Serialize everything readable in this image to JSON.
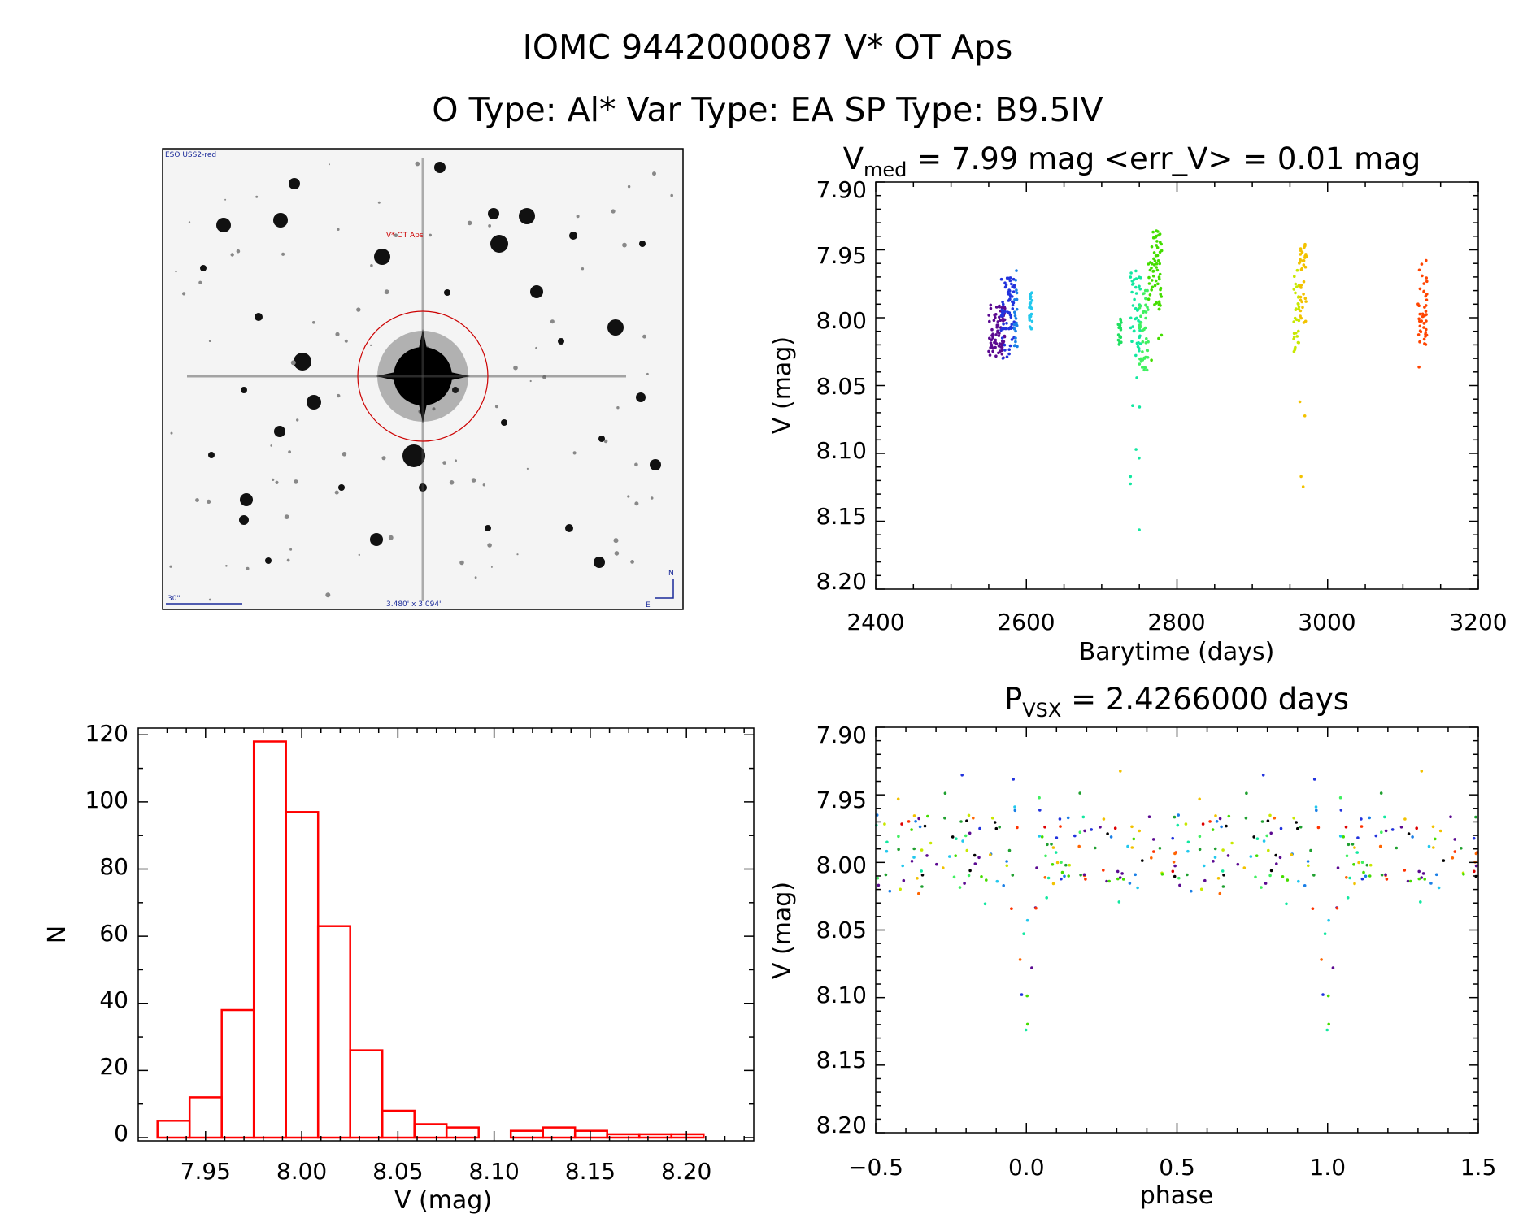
{
  "header": {
    "title_line1": "IOMC 9442000087   V* OT Aps",
    "title_line2": "O Type: Al*  Var Type: EA  SP Type: B9.5IV"
  },
  "finder": {
    "survey_label": "ESO USS2-red",
    "target_label": "V* OT Aps",
    "scale_label": "30\"",
    "field_label": "3.480' x 3.094'",
    "north": "N",
    "east": "E"
  },
  "colors": {
    "histogram": "#ff0000",
    "axes": "#000000",
    "circle": "#cc0000"
  },
  "chart_data": [
    {
      "id": "light_curve",
      "type": "scatter",
      "title_main": "V",
      "title_sub": "med",
      "title_rest": " = 7.99 mag <err_V> = 0.01 mag",
      "xlabel": "Barytime (days)",
      "ylabel": "V (mag)",
      "xlim": [
        2400,
        3200
      ],
      "ylim": [
        8.2,
        7.9
      ],
      "xticks": [
        2400,
        2600,
        2800,
        3000,
        3200
      ],
      "yticks": [
        7.9,
        7.95,
        8.0,
        8.05,
        8.1,
        8.15,
        8.2
      ],
      "clusters": [
        {
          "x": [
            2550,
            2572
          ],
          "y": [
            7.98,
            8.03
          ],
          "color": "#5b0a91"
        },
        {
          "x": [
            2566,
            2584
          ],
          "y": [
            7.96,
            8.03
          ],
          "color": "#2233dd"
        },
        {
          "x": [
            2584,
            2588
          ],
          "y": [
            7.955,
            8.035
          ],
          "color": "#1a7fe6"
        },
        {
          "x": [
            2604,
            2608
          ],
          "y": [
            7.97,
            8.01
          ],
          "color": "#22c8ee"
        },
        {
          "x": [
            2738,
            2752
          ],
          "y": [
            7.96,
            8.195
          ],
          "color": "#12e8a0"
        },
        {
          "x": [
            2750,
            2762
          ],
          "y": [
            7.97,
            8.05
          ],
          "color": "#40f060"
        },
        {
          "x": [
            2762,
            2780
          ],
          "y": [
            7.925,
            8.035
          ],
          "color": "#44dd00"
        },
        {
          "x": [
            2955,
            2962
          ],
          "y": [
            7.955,
            8.025
          ],
          "color": "#c8e800"
        },
        {
          "x": [
            2962,
            2972
          ],
          "y": [
            7.935,
            8.16
          ],
          "color": "#f2c200"
        },
        {
          "x": [
            2722,
            2726
          ],
          "y": [
            7.99,
            8.02
          ],
          "color": "#20e060"
        },
        {
          "x": [
            3120,
            3132
          ],
          "y": [
            7.95,
            8.05
          ],
          "color": "#ff4400"
        }
      ]
    },
    {
      "id": "histogram",
      "type": "bar",
      "xlabel": "V (mag)",
      "ylabel": "N",
      "xlim": [
        7.915,
        8.235
      ],
      "ylim": [
        0,
        122
      ],
      "xticks": [
        7.95,
        8.0,
        8.05,
        8.1,
        8.15,
        8.2
      ],
      "xtick_labels": [
        "7.95",
        "8.00",
        "8.05",
        "8.10",
        "8.15",
        "8.20"
      ],
      "yticks": [
        0,
        20,
        40,
        60,
        80,
        100,
        120
      ],
      "bin_width": 0.0167,
      "bin_start": 7.925,
      "values": [
        5,
        12,
        38,
        118,
        97,
        63,
        26,
        8,
        4,
        3,
        0,
        2,
        3,
        2,
        1,
        1,
        1
      ]
    },
    {
      "id": "phased",
      "type": "scatter",
      "title_main": "P",
      "title_sub": "VSX",
      "title_rest": " = 2.4266000 days",
      "xlabel": "phase",
      "ylabel": "V (mag)",
      "xlim": [
        -0.5,
        1.5
      ],
      "ylim": [
        8.2,
        7.9
      ],
      "xticks": [
        -0.5,
        0.0,
        0.5,
        1.0,
        1.5
      ],
      "xtick_labels": [
        "−0.5",
        "0.0",
        "0.5",
        "1.0",
        "1.5"
      ],
      "yticks": [
        7.9,
        7.95,
        8.0,
        8.05,
        8.1,
        8.15,
        8.2
      ],
      "eclipse_phase": 0.0
    }
  ],
  "tick_labels_y_mag": [
    "7.90",
    "7.95",
    "8.00",
    "8.05",
    "8.10",
    "8.15",
    "8.20"
  ],
  "tick_labels_x_bary": [
    "2400",
    "2600",
    "2800",
    "3000",
    "3200"
  ],
  "tick_labels_y_hist": [
    "0",
    "20",
    "40",
    "60",
    "80",
    "100",
    "120"
  ]
}
